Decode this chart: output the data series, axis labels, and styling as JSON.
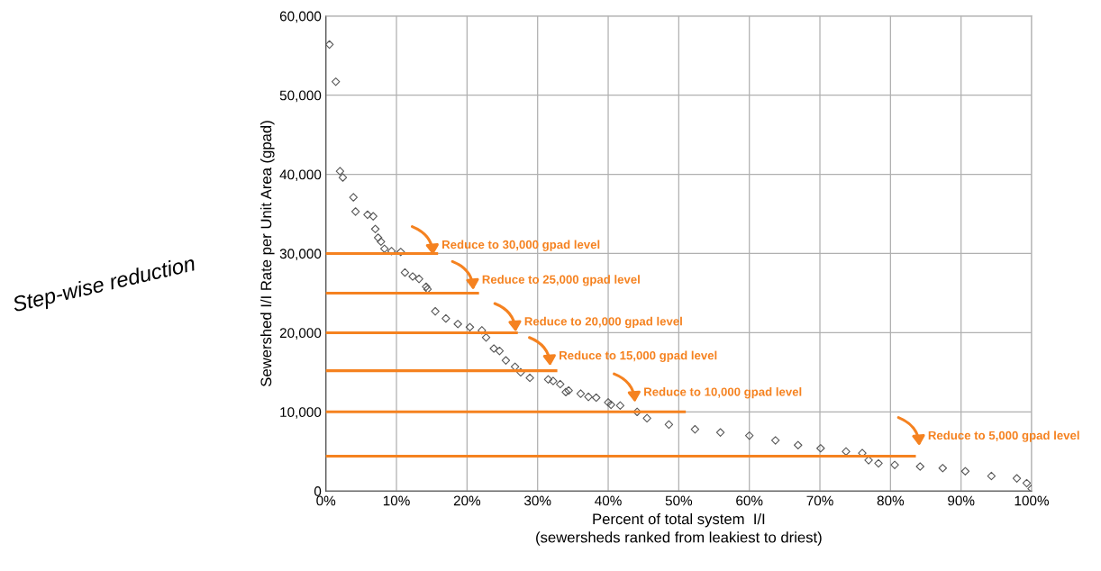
{
  "chart_data": {
    "type": "scatter",
    "xlabel": "Percent of total system  I/I\n(sewersheds ranked from leakiest to driest)",
    "ylabel": "Sewershed I/I Rate per Unit Area (gpad)",
    "xlim": [
      0,
      100
    ],
    "xticks": [
      {
        "value": 0,
        "label": "0%"
      },
      {
        "value": 10,
        "label": "10%"
      },
      {
        "value": 20,
        "label": "20%"
      },
      {
        "value": 30,
        "label": "30%"
      },
      {
        "value": 40,
        "label": "40%"
      },
      {
        "value": 50,
        "label": "50%"
      },
      {
        "value": 60,
        "label": "60%"
      },
      {
        "value": 70,
        "label": "70%"
      },
      {
        "value": 80,
        "label": "80%"
      },
      {
        "value": 90,
        "label": "90%"
      },
      {
        "value": 100,
        "label": "100%"
      }
    ],
    "ylim": [
      0,
      60000
    ],
    "yticks": [
      0,
      {
        "value": 10000,
        "label": "10,000"
      },
      {
        "value": 20000,
        "label": "20,000"
      },
      {
        "value": 30000,
        "label": "30,000"
      },
      {
        "value": 40000,
        "label": "40,000"
      },
      {
        "value": 50000,
        "label": "50,000"
      },
      {
        "value": 60000,
        "label": "60,000"
      }
    ],
    "grid": true,
    "legend": false,
    "marker": "diamond",
    "series": [
      {
        "color": "#595959",
        "x": [
          0.5,
          1.4,
          2.0,
          2.4,
          3.9,
          4.2,
          5.9,
          6.7,
          7.0,
          7.4,
          7.8,
          8.3,
          9.3,
          10.6,
          11.2,
          12.3,
          13.2,
          14.2,
          14.4,
          15.5,
          17.0,
          18.7,
          20.4,
          22.1,
          22.7,
          23.8,
          24.6,
          25.5,
          26.8,
          27.6,
          28.9,
          31.5,
          32.2,
          33.2,
          34.0,
          34.4,
          36.1,
          37.2,
          38.3,
          40.0,
          40.4,
          41.7,
          44.1,
          45.5,
          48.6,
          52.3,
          55.9,
          60.0,
          63.7,
          66.9,
          70.1,
          73.7,
          76.0,
          76.9,
          78.3,
          80.6,
          84.2,
          87.4,
          90.6,
          94.3,
          97.9,
          99.3,
          100.0
        ],
        "values": [
          56400,
          51700,
          40400,
          39600,
          37100,
          35300,
          34900,
          34700,
          33100,
          32000,
          31500,
          30600,
          30300,
          30200,
          27600,
          27100,
          26800,
          25800,
          25500,
          22700,
          21800,
          21100,
          20700,
          20300,
          19400,
          18000,
          17700,
          16500,
          15700,
          15000,
          14300,
          14100,
          13900,
          13500,
          12500,
          12700,
          12300,
          11900,
          11800,
          11200,
          10900,
          10800,
          10000,
          9200,
          8400,
          7800,
          7400,
          7000,
          6400,
          5800,
          5400,
          5000,
          4800,
          3900,
          3500,
          3300,
          3100,
          2900,
          2500,
          1900,
          1600,
          1000,
          300
        ]
      },
      {
        "type": "line",
        "color": "#f58220",
        "marker": "none",
        "x": [
          0,
          15.7
        ],
        "values": [
          30000,
          30000
        ]
      },
      {
        "type": "line",
        "color": "#f58220",
        "marker": "none",
        "x": [
          0,
          21.5
        ],
        "values": [
          25000,
          25000
        ]
      },
      {
        "type": "line",
        "color": "#f58220",
        "marker": "none",
        "x": [
          0,
          27.0
        ],
        "values": [
          20000,
          20000
        ]
      },
      {
        "type": "line",
        "color": "#f58220",
        "marker": "none",
        "x": [
          0,
          32.6
        ],
        "values": [
          15200,
          15200
        ]
      },
      {
        "type": "line",
        "color": "#f58220",
        "marker": "none",
        "x": [
          0,
          50.8
        ],
        "values": [
          10000,
          10000
        ]
      },
      {
        "type": "line",
        "color": "#f58220",
        "marker": "none",
        "x": [
          0,
          83.4
        ],
        "values": [
          4400,
          4400
        ]
      }
    ],
    "annotations": [
      "Reduce to 30,000 gpad level",
      "Reduce to 25,000 gpad level",
      "Reduce to 20,000 gpad level",
      "Reduce to 15,000 gpad level",
      "Reduce to 10,000 gpad level",
      "Reduce to 5,000 gpad level",
      "Step-wise reduction"
    ]
  }
}
